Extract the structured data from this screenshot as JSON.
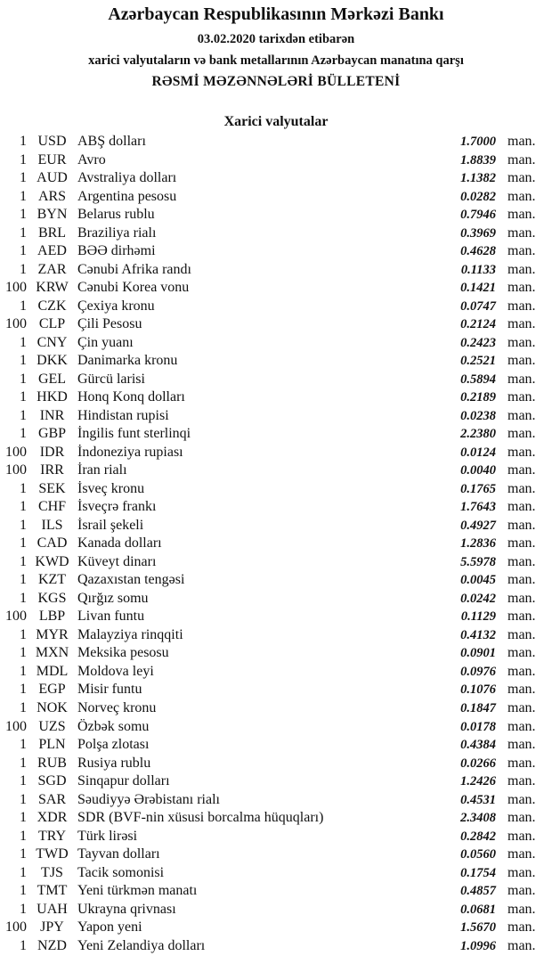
{
  "header": {
    "title": "Azərbaycan Respublikasının Mərkəzi Bankı",
    "date_line": "03.02.2020 tarixdən etibarən",
    "subtitle": "xarici valyutaların və bank metallarının Azərbaycan manatına qarşı",
    "bulletin": "RƏSMİ MƏZƏNNƏLƏRİ BÜLLETENİ"
  },
  "section": {
    "title": "Xarici valyutalar"
  },
  "unit": "man.",
  "rates": [
    [
      "1",
      "USD",
      "ABŞ dolları",
      "1.7000"
    ],
    [
      "1",
      "EUR",
      "Avro",
      "1.8839"
    ],
    [
      "1",
      "AUD",
      "Avstraliya dolları",
      "1.1382"
    ],
    [
      "1",
      "ARS",
      "Argentina pesosu",
      "0.0282"
    ],
    [
      "1",
      "BYN",
      "Belarus rublu",
      "0.7946"
    ],
    [
      "1",
      "BRL",
      "Braziliya rialı",
      "0.3969"
    ],
    [
      "1",
      "AED",
      "BƏƏ dirhəmi",
      "0.4628"
    ],
    [
      "1",
      "ZAR",
      "Cənubi Afrika randı",
      "0.1133"
    ],
    [
      "100",
      "KRW",
      "Cənubi Korea vonu",
      "0.1421"
    ],
    [
      "1",
      "CZK",
      "Çexiya kronu",
      "0.0747"
    ],
    [
      "100",
      "CLP",
      "Çili Pesosu",
      "0.2124"
    ],
    [
      "1",
      "CNY",
      "Çin yuanı",
      "0.2423"
    ],
    [
      "1",
      "DKK",
      "Danimarka kronu",
      "0.2521"
    ],
    [
      "1",
      "GEL",
      "Gürcü larisi",
      "0.5894"
    ],
    [
      "1",
      "HKD",
      "Honq Konq dolları",
      "0.2189"
    ],
    [
      "1",
      "INR",
      "Hindistan rupisi",
      "0.0238"
    ],
    [
      "1",
      "GBP",
      "İngilis funt sterlinqi",
      "2.2380"
    ],
    [
      "100",
      "IDR",
      "İndoneziya rupiası",
      "0.0124"
    ],
    [
      "100",
      "IRR",
      "İran rialı",
      "0.0040"
    ],
    [
      "1",
      "SEK",
      "İsveç kronu",
      "0.1765"
    ],
    [
      "1",
      "CHF",
      "İsveçrə frankı",
      "1.7643"
    ],
    [
      "1",
      "ILS",
      "İsrail şekeli",
      "0.4927"
    ],
    [
      "1",
      "CAD",
      "Kanada dolları",
      "1.2836"
    ],
    [
      "1",
      "KWD",
      "Küveyt dinarı",
      "5.5978"
    ],
    [
      "1",
      "KZT",
      "Qazaxıstan tengəsi",
      "0.0045"
    ],
    [
      "1",
      "KGS",
      "Qırğız somu",
      "0.0242"
    ],
    [
      "100",
      "LBP",
      "Livan funtu",
      "0.1129"
    ],
    [
      "1",
      "MYR",
      "Malayziya rinqqiti",
      "0.4132"
    ],
    [
      "1",
      "MXN",
      "Meksika pesosu",
      "0.0901"
    ],
    [
      "1",
      "MDL",
      "Moldova leyi",
      "0.0976"
    ],
    [
      "1",
      "EGP",
      "Misir funtu",
      "0.1076"
    ],
    [
      "1",
      "NOK",
      "Norveç kronu",
      "0.1847"
    ],
    [
      "100",
      "UZS",
      "Özbək somu",
      "0.0178"
    ],
    [
      "1",
      "PLN",
      "Polşa zlotası",
      "0.4384"
    ],
    [
      "1",
      "RUB",
      "Rusiya rublu",
      "0.0266"
    ],
    [
      "1",
      "SGD",
      "Sinqapur dolları",
      "1.2426"
    ],
    [
      "1",
      "SAR",
      "Səudiyyə Ərəbistanı rialı",
      "0.4531"
    ],
    [
      "1",
      "XDR",
      "SDR (BVF-nin xüsusi borcalma hüquqları)",
      "2.3408"
    ],
    [
      "1",
      "TRY",
      "Türk lirəsi",
      "0.2842"
    ],
    [
      "1",
      "TWD",
      "Tayvan dolları",
      "0.0560"
    ],
    [
      "1",
      "TJS",
      "Tacik somonisi",
      "0.1754"
    ],
    [
      "1",
      "TMT",
      "Yeni türkmən manatı",
      "0.4857"
    ],
    [
      "1",
      "UAH",
      "Ukrayna qrivnası",
      "0.0681"
    ],
    [
      "100",
      "JPY",
      "Yapon yeni",
      "1.5670"
    ],
    [
      "1",
      "NZD",
      "Yeni Zelandiya dolları",
      "1.0996"
    ]
  ]
}
